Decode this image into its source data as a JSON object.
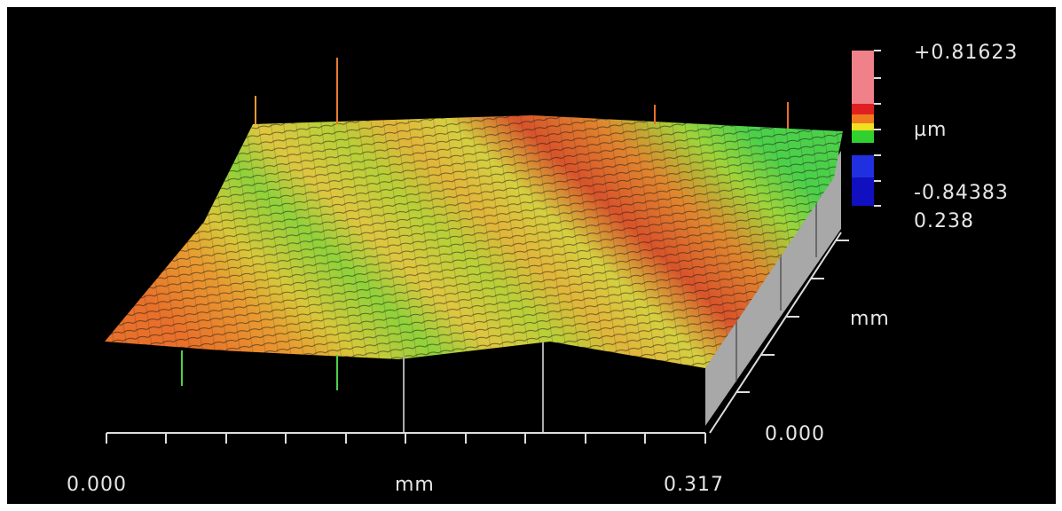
{
  "colorbar": {
    "max_label": "+0.81623",
    "unit": "µm",
    "min_label": "-0.84383"
  },
  "y_axis": {
    "max_label": "0.238",
    "unit": "mm",
    "min_label": "0.000"
  },
  "x_axis": {
    "min_label": "0.000",
    "unit": "mm",
    "max_label": "0.317"
  }
}
